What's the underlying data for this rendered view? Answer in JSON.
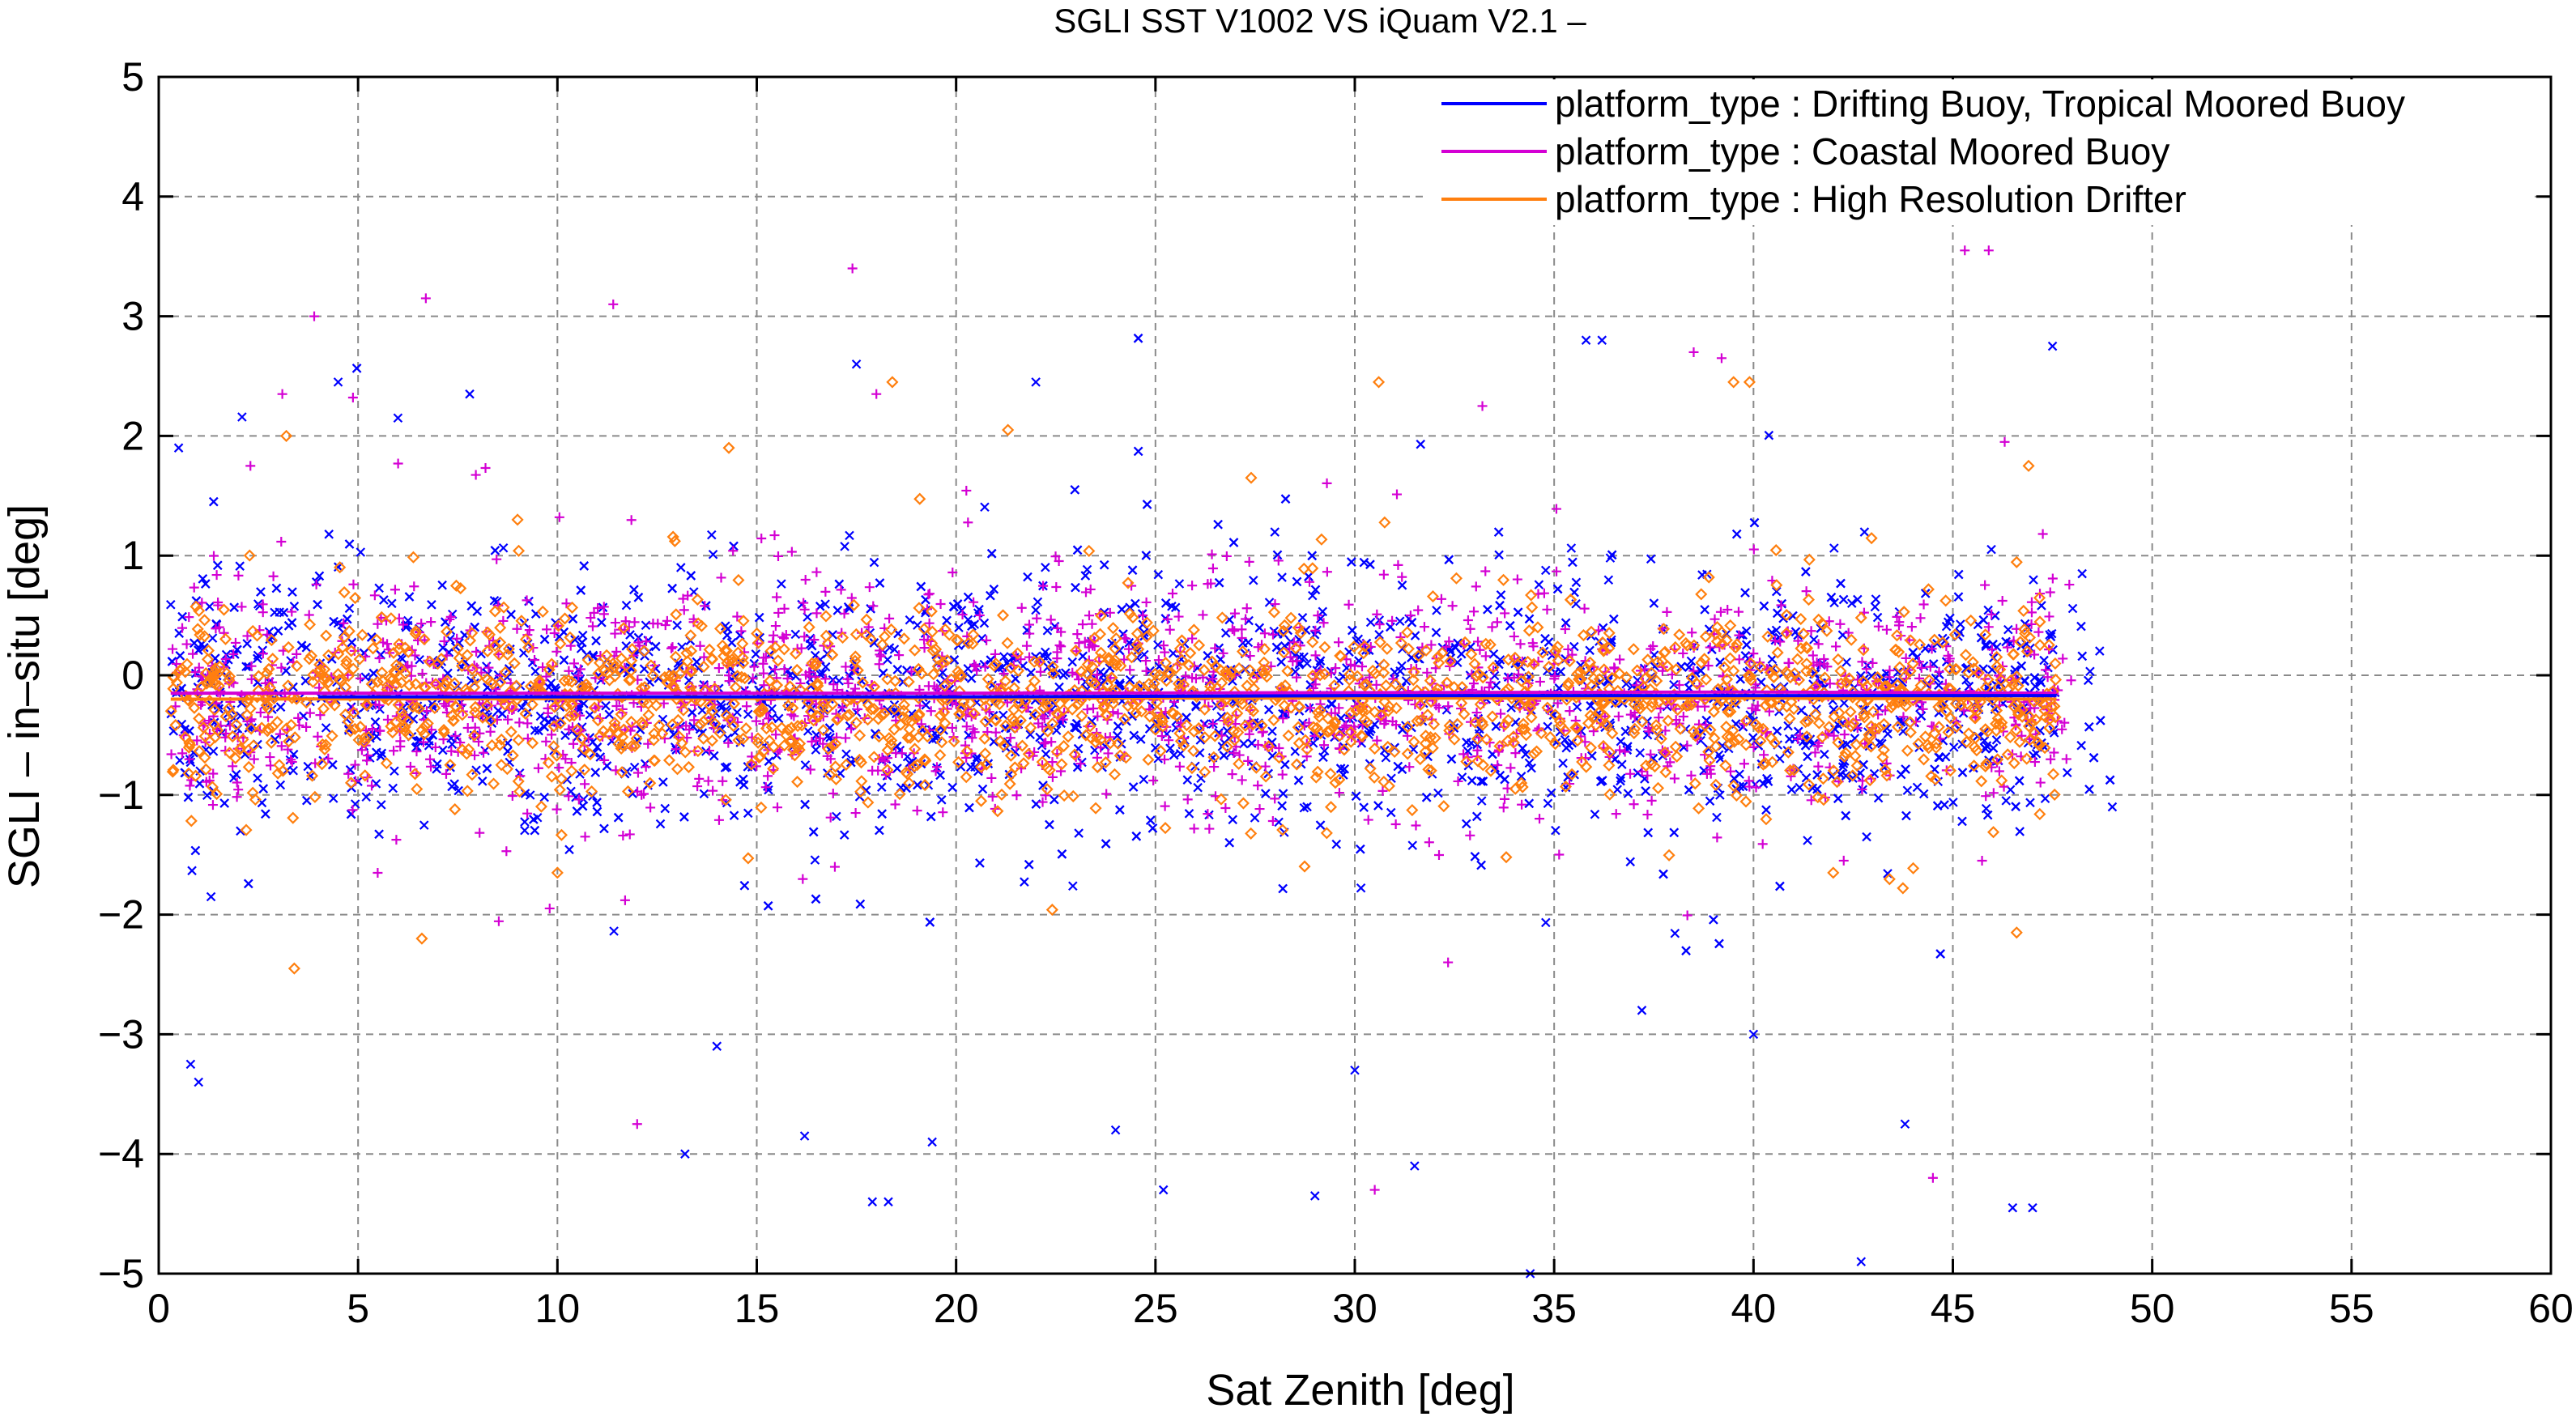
{
  "chart_data": {
    "type": "scatter",
    "title": "SGLI SST V1002 VS iQuam V2.1  –",
    "xlabel": "Sat Zenith [deg]",
    "ylabel": "SGLI – in–situ [deg]",
    "xlim": [
      0,
      60
    ],
    "ylim": [
      -5,
      5
    ],
    "xticks": [
      0,
      5,
      10,
      15,
      20,
      25,
      30,
      35,
      40,
      45,
      50,
      55,
      60
    ],
    "yticks": [
      -5,
      -4,
      -3,
      -2,
      -1,
      0,
      1,
      2,
      3,
      4,
      5
    ],
    "xtick_labels": [
      "0",
      "5",
      "10",
      "15",
      "20",
      "25",
      "30",
      "35",
      "40",
      "45",
      "50",
      "55",
      "60"
    ],
    "ytick_labels": [
      "−5",
      "−4",
      "−3",
      "−2",
      "−1",
      "0",
      "1",
      "2",
      "3",
      "4",
      "5"
    ],
    "grid": true,
    "legend_position": "top-right",
    "series": [
      {
        "name": "platform_type : Drifting Buoy, Tropical Moored Buoy",
        "color": "#0000ff",
        "marker": "x",
        "x_range": [
          0.3,
          49.0
        ],
        "mean_bias": -0.18,
        "spread_sd": 0.5,
        "trend_line": [
          [
            4.0,
            -0.18
          ],
          [
            20.0,
            -0.18
          ],
          [
            30.0,
            -0.17
          ],
          [
            44.0,
            -0.17
          ],
          [
            47.6,
            -0.17
          ]
        ],
        "sample_outliers": [
          [
            0.5,
            1.9
          ],
          [
            1.0,
            -3.4
          ],
          [
            0.8,
            -3.25
          ],
          [
            4.5,
            2.45
          ],
          [
            6.0,
            2.15
          ],
          [
            7.8,
            2.35
          ],
          [
            13.2,
            -4.0
          ],
          [
            14.0,
            -3.1
          ],
          [
            16.2,
            -3.85
          ],
          [
            17.5,
            2.6
          ],
          [
            17.9,
            -4.4
          ],
          [
            18.3,
            -4.4
          ],
          [
            19.4,
            -3.9
          ],
          [
            22.0,
            2.45
          ],
          [
            24.0,
            -3.8
          ],
          [
            25.2,
            -4.3
          ],
          [
            29.0,
            -4.35
          ],
          [
            30.0,
            -3.3
          ],
          [
            31.5,
            -4.1
          ],
          [
            34.4,
            -5.0
          ],
          [
            35.8,
            2.8
          ],
          [
            36.2,
            2.8
          ],
          [
            37.2,
            -2.8
          ],
          [
            40.0,
            -3.0
          ],
          [
            42.7,
            -4.9
          ],
          [
            43.8,
            -3.75
          ],
          [
            46.5,
            -4.45
          ],
          [
            47.0,
            -4.45
          ],
          [
            47.5,
            2.75
          ],
          [
            49.0,
            -1.1
          ]
        ]
      },
      {
        "name": "platform_type : Coastal Moored Buoy",
        "color": "#d400d4",
        "marker": "+",
        "x_range": [
          0.3,
          48.0
        ],
        "mean_bias": -0.15,
        "spread_sd": 0.45,
        "trend_line": [
          [
            0.3,
            -0.15
          ],
          [
            20.0,
            -0.15
          ],
          [
            40.0,
            -0.14
          ],
          [
            47.6,
            -0.15
          ]
        ],
        "sample_outliers": [
          [
            3.9,
            3.0
          ],
          [
            6.7,
            3.15
          ],
          [
            11.4,
            3.1
          ],
          [
            17.4,
            3.4
          ],
          [
            18.0,
            2.35
          ],
          [
            12.0,
            -3.75
          ],
          [
            30.5,
            -4.3
          ],
          [
            33.2,
            2.25
          ],
          [
            38.5,
            2.7
          ],
          [
            39.2,
            2.65
          ],
          [
            44.5,
            -4.2
          ],
          [
            45.3,
            3.55
          ],
          [
            45.9,
            3.55
          ],
          [
            46.3,
            1.95
          ],
          [
            3.1,
            2.35
          ],
          [
            2.3,
            1.75
          ]
        ]
      },
      {
        "name": "platform_type : High Resolution Drifter",
        "color": "#ff7f0e",
        "marker": "diamond",
        "x_range": [
          0.3,
          47.6
        ],
        "mean_bias": -0.2,
        "spread_sd": 0.35,
        "trend_line": [
          [
            0.3,
            -0.2
          ],
          [
            20.0,
            -0.19
          ],
          [
            40.0,
            -0.19
          ],
          [
            47.6,
            -0.2
          ]
        ],
        "sample_outliers": [
          [
            3.2,
            2.0
          ],
          [
            3.4,
            -2.45
          ],
          [
            6.6,
            -2.2
          ],
          [
            18.4,
            2.45
          ],
          [
            21.3,
            2.05
          ],
          [
            30.6,
            2.45
          ],
          [
            39.5,
            2.45
          ],
          [
            39.9,
            2.45
          ],
          [
            27.4,
            1.65
          ],
          [
            46.9,
            1.75
          ],
          [
            46.6,
            -2.15
          ],
          [
            9.0,
            1.3
          ],
          [
            14.3,
            1.9
          ],
          [
            10.0,
            -1.65
          ],
          [
            42.0,
            -1.65
          ]
        ]
      }
    ]
  }
}
